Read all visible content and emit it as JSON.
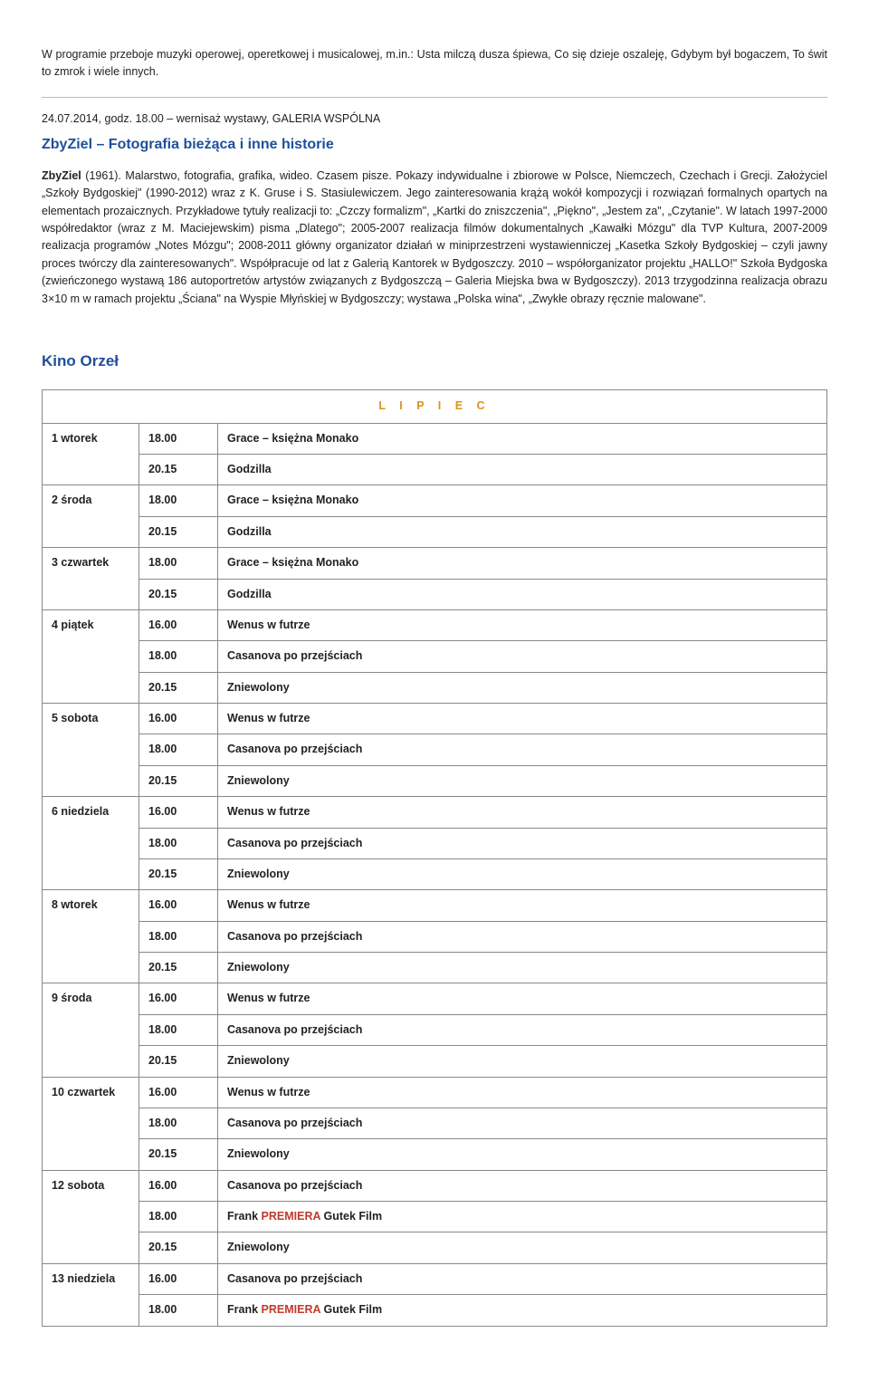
{
  "intro": "W programie przeboje muzyki operowej, operetkowej i musicalowej, m.in.: Usta milczą dusza śpiewa, Co się dzieje oszaleję, Gdybym był bogaczem, To świt to zmrok i wiele innych.",
  "hr": true,
  "event": {
    "dateline": "24.07.2014, godz. 18.00 – wernisaż wystawy, GALERIA WSPÓLNA",
    "title": "ZbyZiel – Fotografia bieżąca i inne historie",
    "desc_lead_bold": "ZbyZiel",
    "desc": " (1961). Malarstwo, fotografia, grafika, wideo. Czasem pisze. Pokazy indywidualne i zbiorowe w Polsce, Niemczech, Czechach i Grecji. Założyciel „Szkoły Bydgoskiej\" (1990-2012) wraz z K. Gruse i S. Stasiulewiczem. Jego zainteresowania krążą wokół kompozycji i rozwiązań formalnych opartych na elementach prozaicznych. Przykładowe tytuły realizacji to: „Czczy formalizm\", „Kartki do zniszczenia\", „Piękno\", „Jestem za\", „Czytanie\". W latach 1997-2000 współredaktor (wraz z M. Maciejewskim) pisma „Dlatego\"; 2005-2007 realizacja filmów dokumentalnych „Kawałki Mózgu\" dla TVP Kultura, 2007-2009 realizacja programów „Notes Mózgu\"; 2008-2011 główny organizator działań w miniprzestrzeni wystawienniczej „Kasetka Szkoły Bydgoskiej – czyli jawny proces twórczy dla zainteresowanych\". Współpracuje od lat z Galerią Kantorek w Bydgoszczy. 2010 – współorganizator projektu „HALLO!\" Szkoła Bydgoska (zwieńczonego wystawą 186 autoportretów artystów związanych z Bydgoszczą – Galeria Miejska bwa w Bydgoszczy). 2013 trzygodzinna realizacja obrazu 3×10 m w ramach projektu „Ściana\" na Wyspie Młyńskiej w Bydgoszczy; wystawa „Polska wina\", „Zwykłe obrazy ręcznie malowane\"."
  },
  "section_title": "Kino Orzeł",
  "month_header": "L I P I E C",
  "schedule": [
    {
      "day": "1 wtorek",
      "rows": [
        {
          "time": "18.00",
          "title": "Grace – księżna Monako"
        },
        {
          "time": "20.15",
          "title": "Godzilla"
        }
      ]
    },
    {
      "day": "2 środa",
      "rows": [
        {
          "time": "18.00",
          "title": "Grace – księżna Monako"
        },
        {
          "time": "20.15",
          "title": "Godzilla"
        }
      ]
    },
    {
      "day": "3 czwartek",
      "rows": [
        {
          "time": "18.00",
          "title": "Grace – księżna Monako"
        },
        {
          "time": "20.15",
          "title": "Godzilla"
        }
      ]
    },
    {
      "day": "4 piątek",
      "rows": [
        {
          "time": "16.00",
          "title": "Wenus w futrze"
        },
        {
          "time": "18.00",
          "title": "Casanova po przejściach"
        },
        {
          "time": "20.15",
          "title": "Zniewolony"
        }
      ]
    },
    {
      "day": "5 sobota",
      "rows": [
        {
          "time": "16.00",
          "title": "Wenus w futrze"
        },
        {
          "time": "18.00",
          "title": "Casanova po przejściach"
        },
        {
          "time": "20.15",
          "title": "Zniewolony"
        }
      ]
    },
    {
      "day": "6 niedziela",
      "rows": [
        {
          "time": "16.00",
          "title": "Wenus w futrze"
        },
        {
          "time": "18.00",
          "title": "Casanova po przejściach"
        },
        {
          "time": "20.15",
          "title": "Zniewolony"
        }
      ]
    },
    {
      "day": "8 wtorek",
      "rows": [
        {
          "time": "16.00",
          "title": "Wenus w futrze"
        },
        {
          "time": "18.00",
          "title": "Casanova po przejściach"
        },
        {
          "time": "20.15",
          "title": "Zniewolony"
        }
      ]
    },
    {
      "day": "9 środa",
      "rows": [
        {
          "time": "16.00",
          "title": "Wenus w futrze"
        },
        {
          "time": "18.00",
          "title": "Casanova po przejściach"
        },
        {
          "time": "20.15",
          "title": "Zniewolony"
        }
      ]
    },
    {
      "day": "10 czwartek",
      "rows": [
        {
          "time": "16.00",
          "title": "Wenus w futrze"
        },
        {
          "time": "18.00",
          "title": "Casanova po przejściach"
        },
        {
          "time": "20.15",
          "title": "Zniewolony"
        }
      ]
    },
    {
      "day": "12 sobota",
      "rows": [
        {
          "time": "16.00",
          "title": "Casanova po przejściach"
        },
        {
          "time": "18.00",
          "title_pre": "Frank ",
          "prem": "PREMIERA",
          "title_post": " Gutek Film"
        },
        {
          "time": "20.15",
          "title": "Zniewolony"
        }
      ]
    },
    {
      "day": "13 niedziela",
      "rows": [
        {
          "time": "16.00",
          "title": "Casanova po przejściach"
        },
        {
          "time": "18.00",
          "title_pre": "Frank ",
          "prem": "PREMIERA",
          "title_post": " Gutek Film"
        }
      ]
    }
  ]
}
